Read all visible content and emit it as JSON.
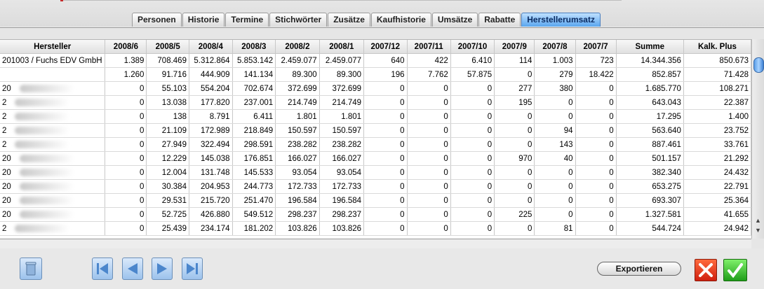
{
  "tabs": [
    {
      "label": "Personen"
    },
    {
      "label": "Historie"
    },
    {
      "label": "Termine"
    },
    {
      "label": "Stichwörter"
    },
    {
      "label": "Zusätze"
    },
    {
      "label": "Kaufhistorie"
    },
    {
      "label": "Umsätze"
    },
    {
      "label": "Rabatte"
    },
    {
      "label": "Herstellerumsatz",
      "active": true
    }
  ],
  "table": {
    "columns": [
      "Hersteller",
      "2008/6",
      "2008/5",
      "2008/4",
      "2008/3",
      "2008/2",
      "2008/1",
      "2007/12",
      "2007/11",
      "2007/10",
      "2007/9",
      "2007/8",
      "2007/7",
      "Summe",
      "Kalk. Plus"
    ],
    "rows": [
      [
        "201003 / Fuchs EDV GmbH",
        "1.389",
        "708.469",
        "5.312.864",
        "5.853.142",
        "2.459.077",
        "2.459.077",
        "640",
        "422",
        "6.410",
        "114",
        "1.003",
        "723",
        "14.344.356",
        "850.673"
      ],
      [
        "",
        "1.260",
        "91.716",
        "444.909",
        "141.134",
        "89.300",
        "89.300",
        "196",
        "7.762",
        "57.875",
        "0",
        "279",
        "18.422",
        "852.857",
        "71.428"
      ],
      [
        "20",
        "0",
        "55.103",
        "554.204",
        "702.674",
        "372.699",
        "372.699",
        "0",
        "0",
        "0",
        "277",
        "380",
        "0",
        "1.685.770",
        "108.271"
      ],
      [
        "2",
        "0",
        "13.038",
        "177.820",
        "237.001",
        "214.749",
        "214.749",
        "0",
        "0",
        "0",
        "195",
        "0",
        "0",
        "643.043",
        "22.387"
      ],
      [
        "2",
        "0",
        "138",
        "8.791",
        "6.411",
        "1.801",
        "1.801",
        "0",
        "0",
        "0",
        "0",
        "0",
        "0",
        "17.295",
        "1.400"
      ],
      [
        "2",
        "0",
        "21.109",
        "172.989",
        "218.849",
        "150.597",
        "150.597",
        "0",
        "0",
        "0",
        "0",
        "94",
        "0",
        "563.640",
        "23.752"
      ],
      [
        "2",
        "0",
        "27.949",
        "322.494",
        "298.591",
        "238.282",
        "238.282",
        "0",
        "0",
        "0",
        "0",
        "143",
        "0",
        "887.461",
        "33.761"
      ],
      [
        "20",
        "0",
        "12.229",
        "145.038",
        "176.851",
        "166.027",
        "166.027",
        "0",
        "0",
        "0",
        "970",
        "40",
        "0",
        "501.157",
        "21.292"
      ],
      [
        "20",
        "0",
        "12.004",
        "131.748",
        "145.533",
        "93.054",
        "93.054",
        "0",
        "0",
        "0",
        "0",
        "0",
        "0",
        "382.340",
        "24.432"
      ],
      [
        "20",
        "0",
        "30.384",
        "204.953",
        "244.773",
        "172.733",
        "172.733",
        "0",
        "0",
        "0",
        "0",
        "0",
        "0",
        "653.275",
        "22.791"
      ],
      [
        "20",
        "0",
        "29.531",
        "215.720",
        "251.470",
        "196.584",
        "196.584",
        "0",
        "0",
        "0",
        "0",
        "0",
        "0",
        "693.307",
        "25.364"
      ],
      [
        "20",
        "0",
        "52.725",
        "426.880",
        "549.512",
        "298.237",
        "298.237",
        "0",
        "0",
        "0",
        "225",
        "0",
        "0",
        "1.327.581",
        "41.655"
      ],
      [
        "2",
        "0",
        "25.439",
        "234.174",
        "181.202",
        "103.826",
        "103.826",
        "0",
        "0",
        "0",
        "0",
        "81",
        "0",
        "544.724",
        "24.942"
      ]
    ]
  },
  "footer": {
    "export_label": "Exportieren"
  },
  "icons": {
    "trash": "trash-icon",
    "first": "first-page-icon",
    "prev": "prev-page-icon",
    "next": "next-page-icon",
    "last": "last-page-icon",
    "cancel": "cancel-x-icon",
    "ok": "ok-check-icon"
  },
  "colors": {
    "active_tab": "#5aa6ef",
    "cancel": "#d02010",
    "ok": "#1f9d19"
  }
}
